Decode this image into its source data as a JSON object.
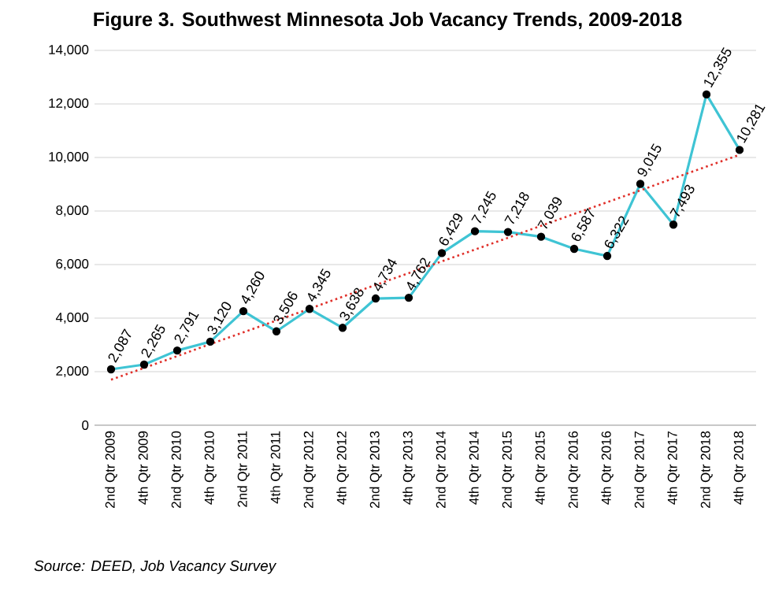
{
  "chart_data": {
    "type": "line",
    "title": "Figure 3. Southwest Minnesota Job Vacancy Trends, 2009-2018",
    "categories": [
      "2nd Qtr 2009",
      "4th Qtr 2009",
      "2nd Qtr 2010",
      "4th Qtr 2010",
      "2nd Qtr 2011",
      "4th Qtr 2011",
      "2nd Qtr 2012",
      "4th Qtr 2012",
      "2nd Qtr 2013",
      "4th Qtr 2013",
      "2nd Qtr 2014",
      "4th Qtr 2014",
      "2nd Qtr 2015",
      "4th Qtr 2015",
      "2nd Qtr 2016",
      "4th Qtr 2016",
      "2nd Qtr 2017",
      "4th Qtr 2017",
      "2nd Qtr 2018",
      "4th Qtr 2018"
    ],
    "series": [
      {
        "color": "#3fc4d4",
        "marker": "circle",
        "line_style": "solid",
        "values": [
          2087,
          2265,
          2791,
          3120,
          4260,
          3506,
          4345,
          3638,
          4734,
          4762,
          6429,
          7245,
          7218,
          7039,
          6587,
          6322,
          9015,
          7493,
          12355,
          10281
        ],
        "value_labels": [
          "2,087",
          "2,265",
          "2,791",
          "3,120",
          "4,260",
          "3,506",
          "4,345",
          "3,638",
          "4,734",
          "4,762",
          "6,429",
          "7,245",
          "7,218",
          "7,039",
          "6,587",
          "6,322",
          "9,015",
          "7,493",
          "12,355",
          "10,281"
        ]
      },
      {
        "type": "line",
        "color": "#e0302a",
        "marker": "none",
        "line_style": "dotted",
        "values": [
          1700,
          2140,
          2580,
          3030,
          3470,
          3910,
          4350,
          4800,
          5240,
          5680,
          6120,
          6560,
          7000,
          7450,
          7890,
          8330,
          8770,
          9220,
          9660,
          10100
        ]
      }
    ],
    "ylim": [
      0,
      14000
    ],
    "yticks": [
      {
        "value": 0,
        "label": "0"
      },
      {
        "value": 2000,
        "label": "2,000"
      },
      {
        "value": 4000,
        "label": "4,000"
      },
      {
        "value": 6000,
        "label": "6,000"
      },
      {
        "value": 8000,
        "label": "8,000"
      },
      {
        "value": 10000,
        "label": "10,000"
      },
      {
        "value": 12000,
        "label": "12,000"
      },
      {
        "value": 14000,
        "label": "14,000"
      }
    ],
    "grid": "y",
    "annotations": [
      "*Source: DEED, Job Vacancy Survey*"
    ]
  }
}
